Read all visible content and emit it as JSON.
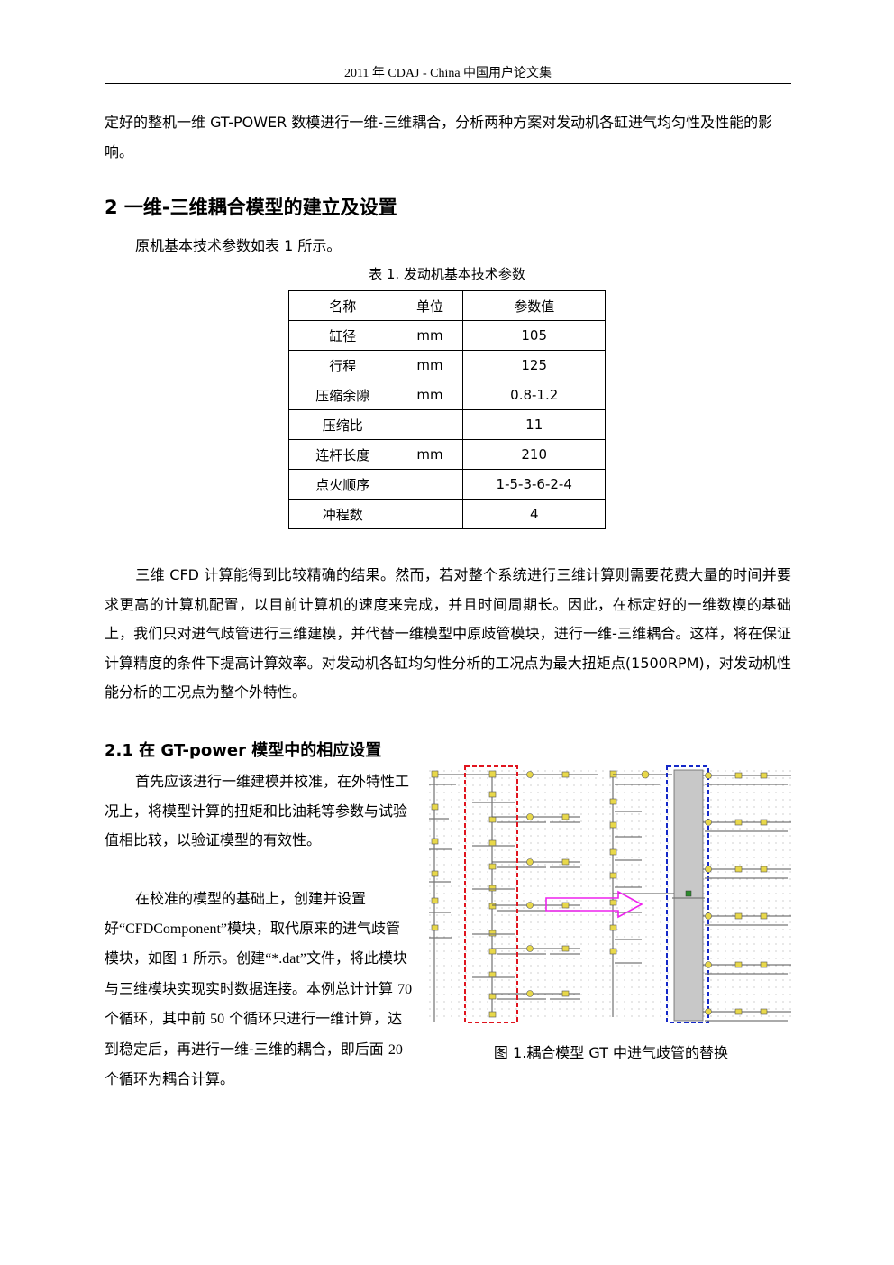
{
  "header": {
    "text": "2011 年 CDAJ - China 中国用户论文集"
  },
  "intro_paragraph": "定好的整机一维 GT-POWER 数模进行一维-三维耦合，分析两种方案对发动机各缸进气均匀性及性能的影响。",
  "section2": {
    "heading": "2 一维-三维耦合模型的建立及设置",
    "intro": "原机基本技术参数如表 1 所示。"
  },
  "table1": {
    "caption": "表 1. 发动机基本技术参数",
    "headers": [
      "名称",
      "单位",
      "参数值"
    ],
    "rows": [
      [
        "缸径",
        "mm",
        "105"
      ],
      [
        "行程",
        "mm",
        "125"
      ],
      [
        "压缩余隙",
        "mm",
        "0.8-1.2"
      ],
      [
        "压缩比",
        "",
        "11"
      ],
      [
        "连杆长度",
        "mm",
        "210"
      ],
      [
        "点火顺序",
        "",
        "1-5-3-6-2-4"
      ],
      [
        "冲程数",
        "",
        "4"
      ]
    ]
  },
  "cfd_paragraph": "三维 CFD 计算能得到比较精确的结果。然而，若对整个系统进行三维计算则需要花费大量的时间并要求更高的计算机配置，以目前计算机的速度来完成，并且时间周期长。因此，在标定好的一维数模的基础上，我们只对进气歧管进行三维建模，并代替一维模型中原歧管模块，进行一维-三维耦合。这样，将在保证计算精度的条件下提高计算效率。对发动机各缸均匀性分析的工况点为最大扭矩点(1500RPM)，对发动机性能分析的工况点为整个外特性。",
  "section21": {
    "heading": "2.1 在 GT-power 模型中的相应设置",
    "para1": "首先应该进行一维建模并校准，在外特性工况上，将模型计算的扭矩和比油耗等参数与试验值相比较，以验证模型的有效性。",
    "para2_prefix": "在校准的模型的基础上，创建并设置好",
    "para2_component": "“CFDComponent”",
    "para2_mid1": "模块，取代原来的进气歧管模块，如图 ",
    "para2_fig": "1",
    "para2_mid2": " 所示。创建",
    "para2_dat": "“*.dat”",
    "para2_mid3": "文件，将此模块与三维模块实现实时数据连接。本例总计计算 ",
    "para2_n70": "70",
    "para2_mid4": " 个循环，其中前 ",
    "para2_n50": "50",
    "para2_mid5": " 个循环只进行一维计算，达到稳定后，再进行一维-三维的耦合，即后面 ",
    "para2_n20": "20",
    "para2_end": " 个循环为耦合计算。"
  },
  "figure1": {
    "caption": "图 1.耦合模型 GT 中进气歧管的替换",
    "colors": {
      "red_box": "#e0141e",
      "blue_box": "#1428c8",
      "arrow": "#ee22ee",
      "block": "#c8c8c8"
    }
  }
}
